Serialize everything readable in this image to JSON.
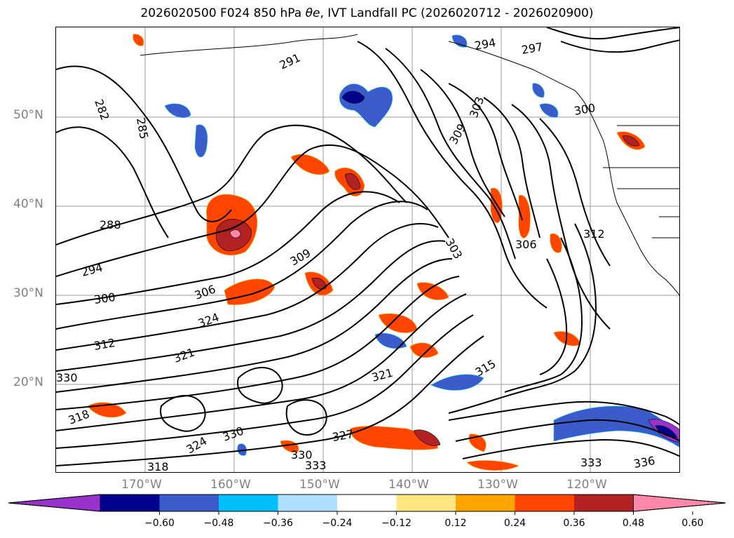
{
  "figure": {
    "title_prefix": "2026020500 F024 850 hPa ",
    "title_var": "θe",
    "title_suffix": ", IVT Landfall PC (2026020712 - 2026020900)"
  },
  "axes": {
    "lat_labels": [
      "50°N",
      "40°N",
      "30°N",
      "20°N"
    ],
    "lon_labels": [
      "170°W",
      "160°W",
      "150°W",
      "140°W",
      "130°W",
      "120°W"
    ]
  },
  "contours": {
    "theta_e_labels": [
      "282",
      "285",
      "288",
      "294",
      "300",
      "306",
      "309",
      "312",
      "321",
      "324",
      "330",
      "318",
      "303",
      "291",
      "294",
      "297",
      "300",
      "303",
      "306",
      "309",
      "312",
      "315",
      "321",
      "327",
      "330",
      "333",
      "336",
      "318",
      "324",
      "330",
      "333"
    ]
  },
  "colorbar": {
    "ticks": [
      "−0.60",
      "−0.48",
      "−0.36",
      "−0.24",
      "−0.12",
      "0.12",
      "0.24",
      "0.36",
      "0.48",
      "0.60"
    ],
    "colors": [
      "#9932CC",
      "#00008B",
      "#3A5BC9",
      "#00BFFF",
      "#B0E0FF",
      "#FFFFFF",
      "#FFE680",
      "#FFA500",
      "#FF4500",
      "#B22222",
      "#FF88AA"
    ]
  }
}
